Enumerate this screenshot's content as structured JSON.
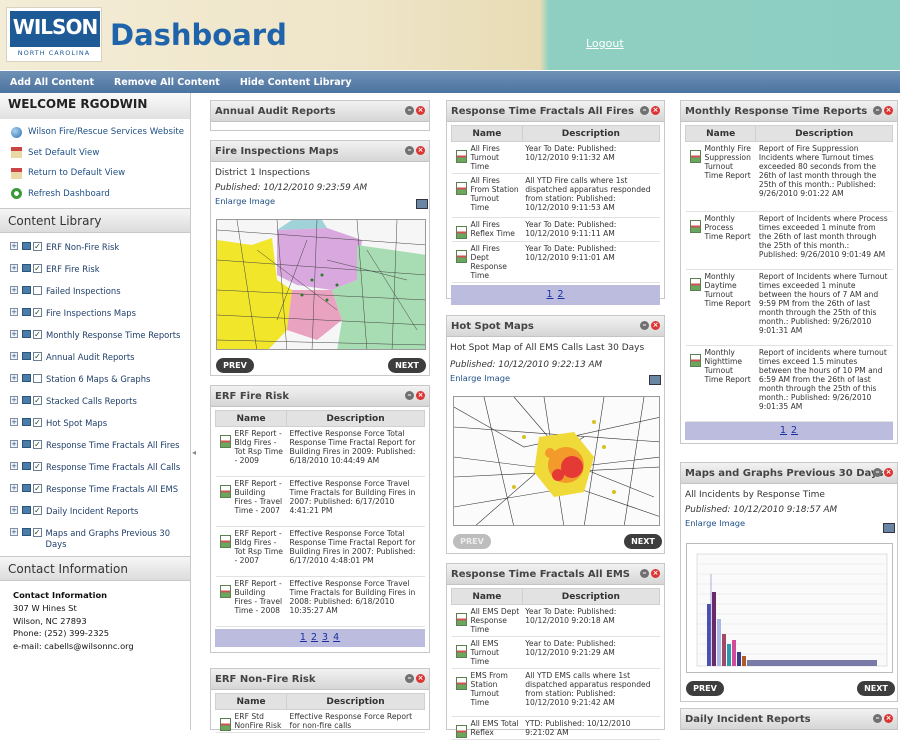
{
  "header": {
    "logo_text": "WILSON",
    "logo_sub": "NORTH CAROLINA",
    "title": "Dashboard",
    "logout": "Logout"
  },
  "menu": [
    "Add All Content",
    "Remove All Content",
    "Hide Content Library"
  ],
  "sidebar": {
    "welcome": "WELCOME RGODWIN",
    "quick_links": [
      "Wilson Fire/Rescue Services Website",
      "Set Default View",
      "Return to Default View",
      "Refresh Dashboard"
    ],
    "library_title": "Content Library",
    "library": [
      {
        "label": "ERF Non-Fire Risk",
        "checked": true
      },
      {
        "label": "ERF Fire Risk",
        "checked": true
      },
      {
        "label": "Failed Inspections",
        "checked": false
      },
      {
        "label": "Fire Inspections Maps",
        "checked": true
      },
      {
        "label": "Monthly Response Time Reports",
        "checked": true
      },
      {
        "label": "Annual Audit Reports",
        "checked": true
      },
      {
        "label": "Station 6 Maps & Graphs",
        "checked": false
      },
      {
        "label": "Stacked Calls Reports",
        "checked": true
      },
      {
        "label": "Hot Spot Maps",
        "checked": true
      },
      {
        "label": "Response Time Fractals All Fires",
        "checked": true
      },
      {
        "label": "Response Time Fractals All Calls",
        "checked": true
      },
      {
        "label": "Response Time Fractals All EMS",
        "checked": true
      },
      {
        "label": "Daily Incident Reports",
        "checked": true
      },
      {
        "label": "Maps and Graphs Previous 30 Days",
        "checked": true
      }
    ],
    "contact_title": "Contact Information",
    "contact": {
      "heading": "Contact Information",
      "address1": "307 W Hines St",
      "address2": "Wilson, NC 27893",
      "phone": "Phone: (252) 399-2325",
      "email": "e-mail: cabells@wilsonnc.org"
    }
  },
  "col1": {
    "audit": {
      "title": "Annual Audit Reports"
    },
    "inspections": {
      "title": "Fire Inspections Maps",
      "subtitle": "District 1 Inspections",
      "published": "Published: 10/12/2010 9:23:59 AM",
      "link": "Enlarge Image",
      "prev": "PREV",
      "next": "NEXT"
    },
    "erf_fire": {
      "title": "ERF Fire Risk",
      "col_name": "Name",
      "col_desc": "Description",
      "rows": [
        {
          "name": "ERF Report - Bldg Fires - Tot Rsp Time - 2009",
          "desc": "Effective Response Force Total Response Time Fractal Report for Building Fires in 2009: Published: 6/18/2010 10:44:49 AM"
        },
        {
          "name": "ERF Report - Building Fires - Travel Time - 2007",
          "desc": "Effective Response Force Travel Time Fractals for Building Fires in 2007: Published: 6/17/2010 4:41:21 PM"
        },
        {
          "name": "ERF Report - Bldg Fires - Tot Rsp Time - 2007",
          "desc": "Effective Response Force Total Response Time Fractal Report for Building Fires in 2007: Published: 6/17/2010 4:48:01 PM"
        },
        {
          "name": "ERF Report - Building Fires - Travel Time - 2008",
          "desc": "Effective Response Force Travel Time Fractals for Building Fires in 2008: Published: 6/18/2010 10:35:27 AM"
        }
      ],
      "pages": [
        "1",
        "2",
        "3",
        "4"
      ]
    },
    "erf_nonfire": {
      "title": "ERF Non-Fire Risk",
      "col_name": "Name",
      "col_desc": "Description",
      "row_name": "ERF Std NonFire Risk",
      "row_desc": "Effective Response Force Report for non-fire calls"
    }
  },
  "col2": {
    "fractals_fires": {
      "title": "Response Time Fractals All Fires",
      "col_name": "Name",
      "col_desc": "Description",
      "rows": [
        {
          "name": "All Fires Turnout Time",
          "desc": "Year To Date: Published: 10/12/2010 9:11:32 AM"
        },
        {
          "name": "All Fires From Station Turnout Time",
          "desc": "All YTD Fire calls where 1st dispatched apparatus responded from station: Published: 10/12/2010 9:11:53 AM"
        },
        {
          "name": "All Fires Reflex Time",
          "desc": "Year To Date: Published: 10/12/2010 9:11:11 AM"
        },
        {
          "name": "All Fires Dept Response Time",
          "desc": "Year To Date: Published: 10/12/2010 9:11:01 AM"
        }
      ],
      "pages": [
        "1",
        "2"
      ]
    },
    "hotspot": {
      "title": "Hot Spot Maps",
      "subtitle": "Hot Spot Map of All EMS Calls Last 30 Days",
      "published": "Published: 10/12/2010 9:22:13 AM",
      "link": "Enlarge Image",
      "prev": "PREV",
      "next": "NEXT"
    },
    "fractals_ems": {
      "title": "Response Time Fractals All EMS",
      "col_name": "Name",
      "col_desc": "Description",
      "rows": [
        {
          "name": "All EMS Dept Response Time",
          "desc": "Year To Date: Published: 10/12/2010 9:20:18 AM"
        },
        {
          "name": "All EMS Turnout Time",
          "desc": "Year to Date: Published: 10/12/2010 9:21:29 AM"
        },
        {
          "name": "EMS From Station Turnout Time",
          "desc": "All YTD EMS calls where 1st dispatched apparatus responded from station: Published: 10/12/2010 9:21:42 AM"
        },
        {
          "name": "All EMS Total Reflex",
          "desc": "YTD: Published: 10/12/2010 9:21:02 AM"
        }
      ]
    }
  },
  "col3": {
    "monthly": {
      "title": "Monthly Response Time Reports",
      "col_name": "Name",
      "col_desc": "Description",
      "rows": [
        {
          "name": "Monthly Fire Suppression Turnout Time Report",
          "desc": "Report of Fire Suppression Incidents where Turnout times exceeded 80 seconds from the 26th of last month through the 25th of this month.: Published: 9/26/2010 9:01:22 AM"
        },
        {
          "name": "Monthly Process Time Report",
          "desc": "Report of Incidents where Process times exceeded 1 minute from the 26th of last month through the 25th of this month.: Published: 9/26/2010 9:01:49 AM"
        },
        {
          "name": "Monthly Daytime Turnout Time Report",
          "desc": "Report of Incidents where Turnout times exceeded 1 minute between the hours of 7 AM and 9:59 PM from the 26th of last month through the 25th of this month.: Published: 9/26/2010 9:01:31 AM"
        },
        {
          "name": "Monthly Nighttime Turnout Time Report",
          "desc": "Report of incidents where turnout times exceed 1.5 minutes between the hours of 10 PM and 6:59 AM from the 26th of last month through the 25th of this month.: Published: 9/26/2010 9:01:35 AM"
        }
      ],
      "pages": [
        "1",
        "2"
      ]
    },
    "maps30": {
      "title": "Maps and Graphs Previous 30 Days",
      "subtitle": "All Incidents by Response Time",
      "published": "Published: 10/12/2010 9:18:57 AM",
      "link": "Enlarge Image",
      "prev": "PREV",
      "next": "NEXT"
    },
    "daily": {
      "title": "Daily Incident Reports"
    }
  }
}
